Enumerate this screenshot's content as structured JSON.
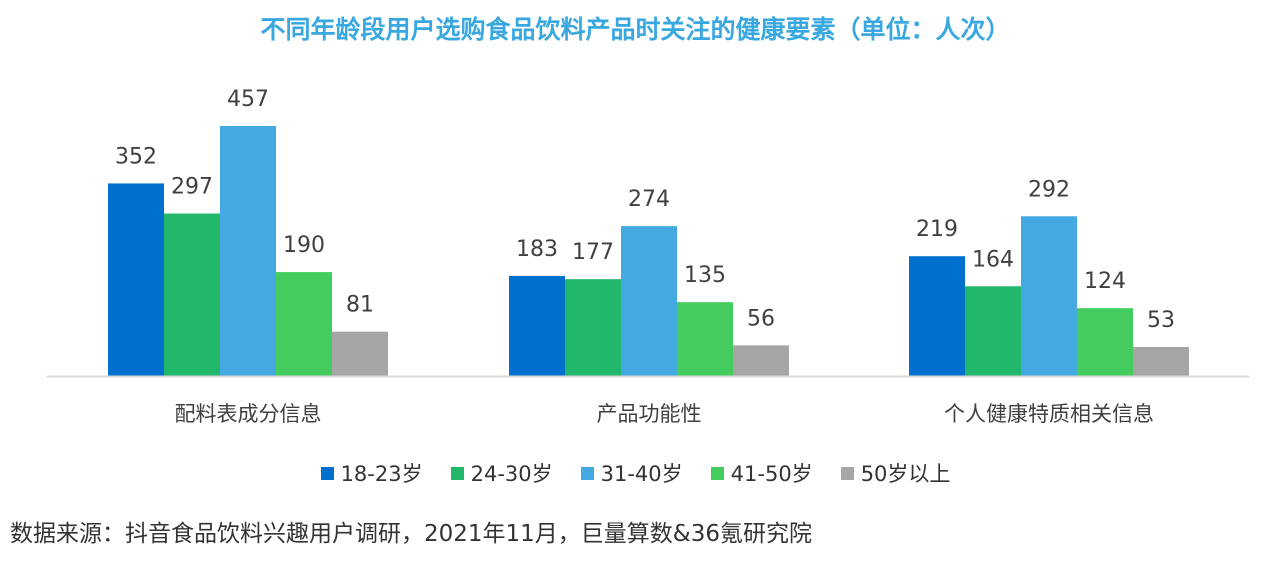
{
  "chart_data": {
    "type": "bar",
    "title": "不同年龄段用户选购食品饮料产品时关注的健康要素（单位：人次）",
    "xlabel": "",
    "ylabel": "",
    "ylim": [
      0,
      500
    ],
    "grid": false,
    "legend_position": "bottom",
    "categories": [
      "配料表成分信息",
      "产品功能性",
      "个人健康特质相关信息"
    ],
    "series": [
      {
        "name": "18-23岁",
        "color": "#0070cf",
        "values": [
          352,
          183,
          219
        ]
      },
      {
        "name": "24-30岁",
        "color": "#21b86b",
        "values": [
          297,
          177,
          164
        ]
      },
      {
        "name": "31-40岁",
        "color": "#45a9e1",
        "values": [
          457,
          274,
          292
        ]
      },
      {
        "name": "41-50岁",
        "color": "#44cc5e",
        "values": [
          190,
          135,
          124
        ]
      },
      {
        "name": "50岁以上",
        "color": "#a6a6a6",
        "values": [
          81,
          56,
          53
        ]
      }
    ]
  },
  "source": "数据来源：抖音食品饮料兴趣用户调研，2021年11月，巨量算数&36氪研究院"
}
